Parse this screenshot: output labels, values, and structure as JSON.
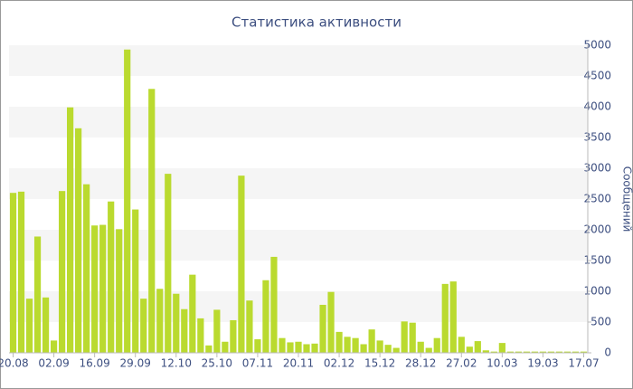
{
  "chart_data": {
    "type": "bar",
    "title": "Статистика активности",
    "y_label": "Сообщений",
    "categories": [
      "20.08",
      null,
      null,
      null,
      null,
      "02.09",
      null,
      null,
      null,
      null,
      "16.09",
      null,
      null,
      null,
      null,
      "29.09",
      null,
      null,
      null,
      null,
      "12.10",
      null,
      null,
      null,
      null,
      "25.10",
      null,
      null,
      null,
      null,
      "07.11",
      null,
      null,
      null,
      null,
      "20.11",
      null,
      null,
      null,
      null,
      "02.12",
      null,
      null,
      null,
      null,
      "15.12",
      null,
      null,
      null,
      null,
      "28.12",
      null,
      null,
      null,
      null,
      "27.02",
      null,
      null,
      null,
      null,
      "10.03",
      null,
      null,
      null,
      null,
      "19.03",
      null,
      null,
      null,
      null,
      "17.07"
    ],
    "values": [
      2600,
      2620,
      880,
      1890,
      900,
      200,
      2630,
      3990,
      3650,
      2740,
      2070,
      2080,
      2460,
      2010,
      4930,
      2330,
      880,
      4290,
      1040,
      2910,
      960,
      710,
      1270,
      560,
      120,
      700,
      180,
      530,
      2880,
      850,
      220,
      1180,
      1560,
      240,
      170,
      180,
      140,
      150,
      780,
      990,
      340,
      260,
      240,
      140,
      380,
      200,
      130,
      80,
      510,
      490,
      180,
      80,
      240,
      1120,
      1160,
      260,
      100,
      190,
      40,
      20,
      160,
      20,
      20,
      20,
      20,
      20,
      20,
      20,
      20,
      20,
      20
    ],
    "color": "#bada2f",
    "ylim": [
      0,
      5000
    ],
    "yticks": [
      0,
      500,
      1000,
      1500,
      2000,
      2500,
      3000,
      3500,
      4000,
      4500,
      5000
    ],
    "grid": true
  }
}
